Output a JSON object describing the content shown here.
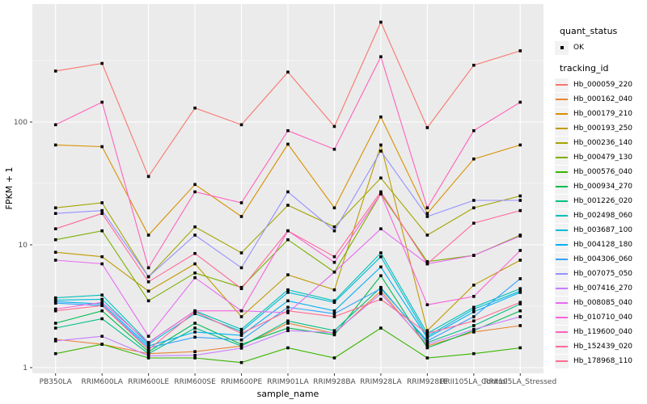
{
  "axes": {
    "y_title": "FPKM + 1",
    "x_title": "sample_name",
    "y_tick_labels": [
      "1",
      "10",
      "100"
    ]
  },
  "legend": {
    "quant_status_title": "quant_status",
    "quant_status_items": [
      {
        "label": "OK",
        "marker": "point-icon"
      }
    ],
    "tracking_title": "tracking_id"
  },
  "colors": {
    "panel_bg": "#EBEBEB",
    "grid": "#FFFFFF",
    "point": "#000000",
    "axis_text": "#4D4D4D",
    "key_bg": "#F2F2F2"
  },
  "chart_data": {
    "type": "line",
    "title": "",
    "xlabel": "sample_name",
    "ylabel": "FPKM + 1",
    "y_scale": "log10",
    "ylim": [
      1,
      910
    ],
    "y_major_ticks": [
      1,
      10,
      100
    ],
    "y_minor_ticks": [
      3.162,
      31.62,
      316.2
    ],
    "grid": true,
    "legend_position": "right",
    "point_shape": "filled-square",
    "categories": [
      "PB350LA",
      "RRIM600LA",
      "RRIM600LE",
      "RRIM600SE",
      "RRIM600PE",
      "RRIM901LA",
      "RRIM928BA",
      "RRIM928LA",
      "RRIM928LE",
      "RRII105LA_Control",
      "RRII105LA_Stressed"
    ],
    "series": [
      {
        "name": "Hb_000059_220",
        "color": "#F8766D",
        "values": [
          260,
          300,
          36,
          130,
          95,
          255,
          92,
          650,
          90,
          290,
          380
        ]
      },
      {
        "name": "Hb_000162_040",
        "color": "#EA8331",
        "values": [
          1.7,
          1.55,
          1.3,
          1.35,
          1.5,
          2.3,
          1.9,
          4.2,
          1.5,
          1.95,
          2.2
        ]
      },
      {
        "name": "Hb_000179_210",
        "color": "#D89000",
        "values": [
          65,
          63,
          12,
          31,
          17,
          66,
          20,
          110,
          18,
          50,
          65
        ]
      },
      {
        "name": "Hb_000193_250",
        "color": "#C09B00",
        "values": [
          8.7,
          8.0,
          4.2,
          7.0,
          2.6,
          5.7,
          4.3,
          65,
          2.0,
          4.7,
          7.5
        ]
      },
      {
        "name": "Hb_000236_140",
        "color": "#A3A500",
        "values": [
          20,
          22,
          5.5,
          14,
          8.6,
          21,
          14,
          35,
          12,
          20,
          25
        ]
      },
      {
        "name": "Hb_000479_130",
        "color": "#7CAE00",
        "values": [
          11,
          13,
          3.5,
          5.9,
          4.5,
          11,
          6.0,
          26,
          7.3,
          8.2,
          12
        ]
      },
      {
        "name": "Hb_000576_040",
        "color": "#39B600",
        "values": [
          1.3,
          1.55,
          1.2,
          1.2,
          1.1,
          1.45,
          1.2,
          2.1,
          1.2,
          1.3,
          1.45
        ]
      },
      {
        "name": "Hb_000934_270",
        "color": "#00BB4E",
        "values": [
          2.3,
          2.9,
          1.35,
          2.3,
          1.55,
          2.1,
          1.85,
          5.6,
          1.45,
          2.0,
          2.9
        ]
      },
      {
        "name": "Hb_001226_020",
        "color": "#00C087",
        "values": [
          2.1,
          2.5,
          1.3,
          2.1,
          1.5,
          2.4,
          2.0,
          4.5,
          1.6,
          2.2,
          3.3
        ]
      },
      {
        "name": "Hb_002498_060",
        "color": "#00C0B8",
        "values": [
          3.7,
          3.9,
          1.6,
          2.9,
          2.05,
          4.3,
          3.5,
          8.6,
          1.9,
          3.1,
          4.4
        ]
      },
      {
        "name": "Hb_003687_100",
        "color": "#00BCD8",
        "values": [
          3.55,
          3.6,
          1.55,
          2.75,
          1.97,
          4.1,
          3.4,
          8.0,
          1.8,
          3.0,
          4.2
        ]
      },
      {
        "name": "Hb_004128_180",
        "color": "#00B0F6",
        "values": [
          3.45,
          3.3,
          1.5,
          1.95,
          1.83,
          3.5,
          2.9,
          6.6,
          1.75,
          2.85,
          4.1
        ]
      },
      {
        "name": "Hb_004306_060",
        "color": "#35A2FF",
        "values": [
          3.35,
          3.2,
          1.45,
          1.77,
          1.68,
          3.1,
          2.75,
          4.4,
          1.65,
          2.6,
          5.3
        ]
      },
      {
        "name": "Hb_007075_050",
        "color": "#9590FF",
        "values": [
          18,
          19,
          5.5,
          12,
          6.5,
          27,
          13,
          58,
          17,
          23,
          23
        ]
      },
      {
        "name": "Hb_007416_270",
        "color": "#C77CFF",
        "values": [
          1.65,
          1.8,
          1.25,
          1.26,
          1.44,
          2.0,
          1.93,
          4.0,
          1.55,
          2.05,
          2.6
        ]
      },
      {
        "name": "Hb_008085_040",
        "color": "#E76BF3",
        "values": [
          7.5,
          7.0,
          1.8,
          5.4,
          2.9,
          2.8,
          6.0,
          13.5,
          7.0,
          8.2,
          11.8
        ]
      },
      {
        "name": "Hb_010710_040",
        "color": "#FA62DB",
        "values": [
          3.0,
          3.4,
          1.6,
          2.9,
          2.9,
          13,
          7.2,
          26,
          3.25,
          3.8,
          9.0
        ]
      },
      {
        "name": "Hb_119600_040",
        "color": "#FF62BC",
        "values": [
          95,
          145,
          6.5,
          27,
          22,
          85,
          60,
          340,
          20,
          85,
          145
        ]
      },
      {
        "name": "Hb_152439_020",
        "color": "#FF6A98",
        "values": [
          13.5,
          18,
          5,
          8.5,
          4.4,
          13,
          8,
          27,
          7,
          15,
          19
        ]
      },
      {
        "name": "Hb_178968_110",
        "color": "#FF6C91",
        "values": [
          2.9,
          3.2,
          1.4,
          2.85,
          1.9,
          2.9,
          2.6,
          3.6,
          1.9,
          2.4,
          3.4
        ]
      }
    ]
  }
}
